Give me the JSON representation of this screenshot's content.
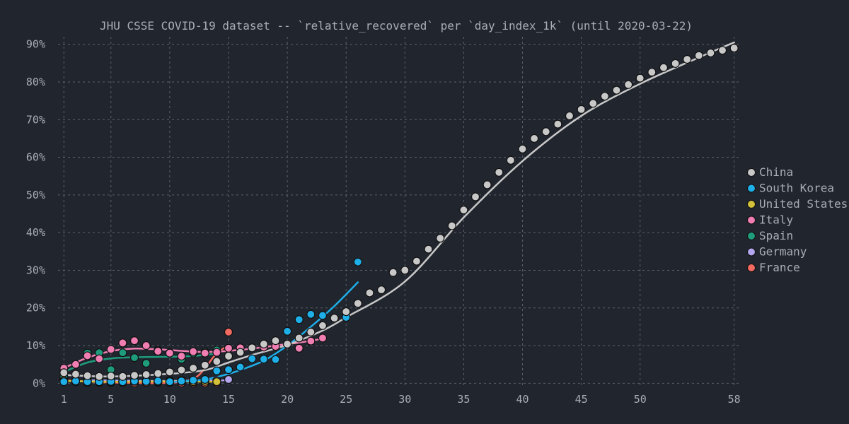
{
  "chart_data": {
    "type": "scatter",
    "title": "JHU CSSE COVID-19 dataset -- `relative_recovered` per `day_index_1k` (until 2020-03-22)",
    "xlabel": "",
    "ylabel": "",
    "xlim": [
      0.5,
      58.5
    ],
    "ylim": [
      -0.005,
      0.92
    ],
    "x_ticks": [
      1,
      5,
      10,
      15,
      20,
      25,
      30,
      35,
      40,
      45,
      50,
      58
    ],
    "y_ticks": [
      0,
      0.1,
      0.2,
      0.3,
      0.4,
      0.5,
      0.6,
      0.7,
      0.8,
      0.9
    ],
    "y_tick_labels": [
      "0%",
      "10%",
      "20%",
      "30%",
      "40%",
      "50%",
      "60%",
      "70%",
      "80%",
      "90%"
    ],
    "grid": true,
    "legend_position": "right",
    "series": [
      {
        "name": "China",
        "color": "#c8c8c8",
        "x": [
          1,
          2,
          3,
          4,
          5,
          6,
          7,
          8,
          9,
          10,
          11,
          12,
          13,
          14,
          15,
          16,
          17,
          18,
          19,
          20,
          21,
          22,
          23,
          24,
          25,
          26,
          27,
          28,
          29,
          30,
          31,
          32,
          33,
          34,
          35,
          36,
          37,
          38,
          39,
          40,
          41,
          42,
          43,
          44,
          45,
          46,
          47,
          48,
          49,
          50,
          51,
          52,
          53,
          54,
          55,
          56,
          57,
          58
        ],
        "y": [
          0.028,
          0.024,
          0.02,
          0.018,
          0.019,
          0.018,
          0.021,
          0.023,
          0.026,
          0.03,
          0.035,
          0.04,
          0.048,
          0.058,
          0.072,
          0.082,
          0.094,
          0.104,
          0.113,
          0.104,
          0.12,
          0.136,
          0.153,
          0.173,
          0.19,
          0.212,
          0.24,
          0.248,
          0.294,
          0.3,
          0.324,
          0.356,
          0.385,
          0.418,
          0.46,
          0.495,
          0.527,
          0.56,
          0.592,
          0.622,
          0.65,
          0.668,
          0.688,
          0.71,
          0.727,
          0.743,
          0.762,
          0.778,
          0.793,
          0.81,
          0.826,
          0.838,
          0.849,
          0.86,
          0.87,
          0.877,
          0.884,
          0.89
        ],
        "fit_x": [
          1,
          5,
          10,
          13,
          15,
          17,
          20,
          23,
          25,
          30,
          35,
          40,
          45,
          50,
          55,
          58
        ],
        "fit_y": [
          0.022,
          0.018,
          0.025,
          0.035,
          0.055,
          0.075,
          0.102,
          0.14,
          0.175,
          0.27,
          0.44,
          0.59,
          0.71,
          0.795,
          0.865,
          0.905
        ]
      },
      {
        "name": "South Korea",
        "color": "#1eaee8",
        "x": [
          1,
          2,
          3,
          4,
          5,
          6,
          7,
          8,
          9,
          10,
          11,
          12,
          13,
          14,
          15,
          16,
          17,
          18,
          19,
          20,
          21,
          22,
          23,
          25,
          26
        ],
        "y": [
          0.004,
          0.006,
          0.004,
          0.004,
          0.005,
          0.004,
          0.006,
          0.005,
          0.006,
          0.004,
          0.006,
          0.008,
          0.01,
          0.033,
          0.036,
          0.043,
          0.065,
          0.064,
          0.063,
          0.138,
          0.169,
          0.183,
          0.18,
          0.175,
          0.322
        ],
        "fit_x": [
          10,
          13,
          15,
          16,
          18,
          20,
          22,
          24,
          26
        ],
        "fit_y": [
          0.003,
          0.01,
          0.025,
          0.035,
          0.06,
          0.1,
          0.15,
          0.205,
          0.268
        ]
      },
      {
        "name": "United States",
        "color": "#d4c13a",
        "x": [
          1,
          2,
          3,
          4,
          5,
          6,
          7,
          8,
          9,
          10,
          11,
          12,
          13,
          14
        ],
        "y": [
          0.007,
          0.006,
          0.006,
          0.005,
          0.004,
          0.004,
          0.005,
          0.005,
          0.004,
          0.006,
          0.005,
          0.004,
          0.005,
          0.004
        ],
        "fit_x": [
          1,
          5,
          10,
          14
        ],
        "fit_y": [
          0.006,
          0.004,
          0.005,
          0.004
        ]
      },
      {
        "name": "Italy",
        "color": "#f07eb2",
        "x": [
          1,
          2,
          3,
          4,
          5,
          6,
          7,
          8,
          9,
          10,
          11,
          12,
          13,
          14,
          15,
          16,
          17,
          18,
          19,
          20,
          21,
          22,
          23
        ],
        "y": [
          0.04,
          0.05,
          0.073,
          0.065,
          0.09,
          0.107,
          0.113,
          0.1,
          0.085,
          0.08,
          0.072,
          0.084,
          0.08,
          0.082,
          0.093,
          0.094,
          0.094,
          0.096,
          0.098,
          0.104,
          0.093,
          0.112,
          0.12
        ],
        "fit_x": [
          1,
          3,
          5,
          7,
          9,
          11,
          13,
          15,
          17,
          19,
          21,
          23
        ],
        "fit_y": [
          0.04,
          0.068,
          0.085,
          0.092,
          0.09,
          0.086,
          0.083,
          0.086,
          0.092,
          0.1,
          0.108,
          0.118
        ]
      },
      {
        "name": "Spain",
        "color": "#1e9c7c",
        "x": [
          1,
          3,
          4,
          5,
          6,
          7,
          8,
          9,
          10,
          11,
          12,
          13,
          14
        ],
        "y": [
          0.017,
          0.08,
          0.081,
          0.036,
          0.081,
          0.068,
          0.053,
          0.087,
          0.081,
          0.064,
          0.08,
          0.083,
          0.088
        ],
        "fit_x": [
          1,
          3,
          5,
          7,
          9,
          11,
          13,
          14
        ],
        "fit_y": [
          0.03,
          0.055,
          0.066,
          0.069,
          0.07,
          0.071,
          0.075,
          0.08
        ]
      },
      {
        "name": "Germany",
        "color": "#b3a5ef",
        "x": [
          3,
          4,
          5,
          6,
          7,
          8,
          9,
          10,
          11,
          12,
          13,
          14,
          15
        ],
        "y": [
          0.007,
          0.008,
          0.01,
          0.006,
          0.006,
          0.006,
          0.006,
          0.007,
          0.007,
          0.005,
          0.007,
          0.007,
          0.01
        ],
        "fit_x": [
          3,
          9,
          15
        ],
        "fit_y": [
          0.008,
          0.006,
          0.008
        ]
      },
      {
        "name": "France",
        "color": "#f26a61",
        "x": [
          1,
          2,
          3,
          4,
          5,
          6,
          7,
          8,
          9,
          10,
          11,
          12,
          13,
          14,
          15
        ],
        "y": [
          0.012,
          0.004,
          0.002,
          0.002,
          0.002,
          0.002,
          0.001,
          0.002,
          0.002,
          0.002,
          0.001,
          0.001,
          0.001,
          0.001,
          0.136
        ],
        "fit_x": [
          1,
          5,
          10,
          12,
          13,
          14,
          15
        ],
        "fit_y": [
          0.008,
          0.002,
          0.001,
          0.012,
          0.04,
          0.08,
          0.1
        ]
      }
    ]
  }
}
